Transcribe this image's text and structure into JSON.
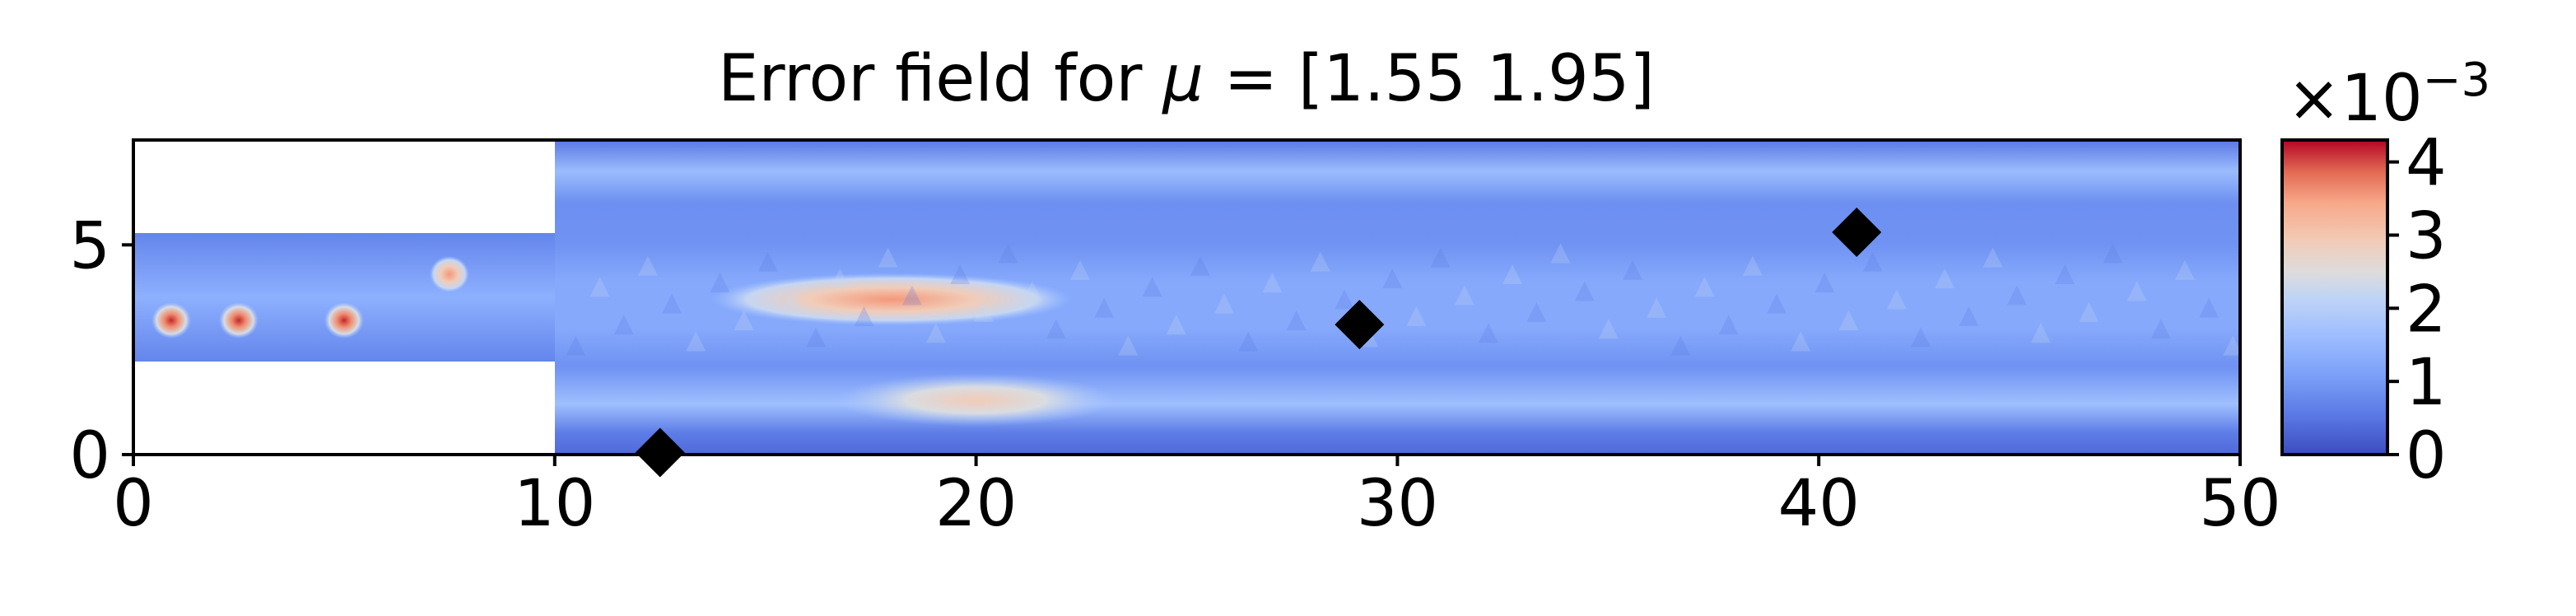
{
  "chart_data": {
    "type": "heatmap",
    "title_prefix": "Error field for ",
    "title_symbol": "μ",
    "title_suffix": " = [1.55 1.95]",
    "xlim": [
      0,
      50
    ],
    "ylim": [
      0,
      7.5
    ],
    "x_ticks": [
      0,
      10,
      20,
      30,
      40,
      50
    ],
    "y_ticks": [
      0,
      5
    ],
    "domain_shape": "backward-facing step: inlet channel x 0-10, y 2.2-5.3; main channel x 10-50, y 0-7.5",
    "markers": [
      {
        "x": 12.5,
        "y": 0.05
      },
      {
        "x": 29.1,
        "y": 3.1
      },
      {
        "x": 40.9,
        "y": 5.3
      }
    ],
    "colorbar": {
      "colormap": "coolwarm",
      "min": 0,
      "max": 4.3,
      "ticks": [
        0,
        1,
        2,
        3,
        4
      ],
      "multiplier_base": "×10",
      "multiplier_exponent": "−3"
    },
    "hotspots": [
      {
        "x": 0.9,
        "y": 3.2,
        "value": 4.0
      },
      {
        "x": 2.5,
        "y": 3.2,
        "value": 3.8
      },
      {
        "x": 5.0,
        "y": 3.2,
        "value": 3.4
      },
      {
        "x": 7.5,
        "y": 4.3,
        "value": 3.2
      },
      {
        "x": 18.0,
        "y": 3.7,
        "value": 3.0
      },
      {
        "x": 20.0,
        "y": 1.3,
        "value": 2.3
      }
    ]
  }
}
